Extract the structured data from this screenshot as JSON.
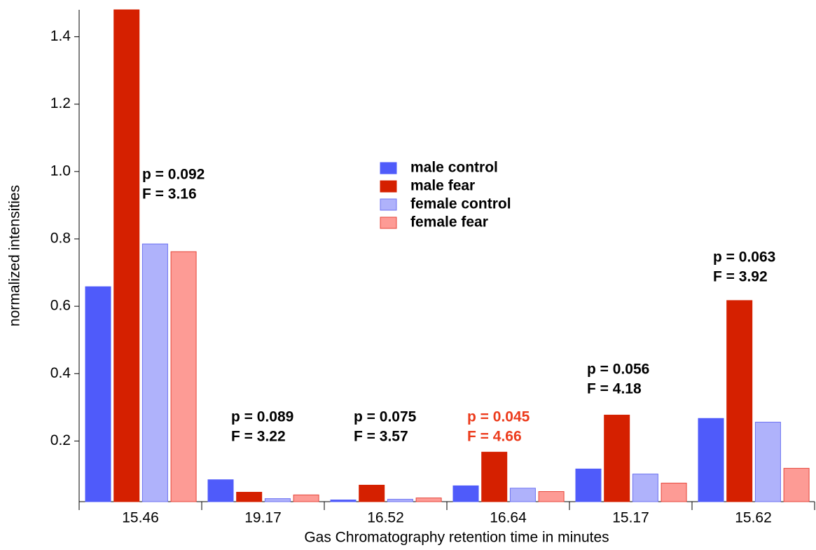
{
  "chart_data": {
    "type": "bar",
    "xlabel": "Gas Chromatography retention time in minutes",
    "ylabel": "normalized intensities",
    "categories": [
      "15.46",
      "19.17",
      "16.52",
      "16.64",
      "15.17",
      "15.62"
    ],
    "series": [
      {
        "name": "male control",
        "color": "#4f5bfa",
        "edgecolor": "#4f5bfa",
        "values": [
          0.658,
          0.085,
          0.025,
          0.067,
          0.117,
          0.267
        ]
      },
      {
        "name": "male fear",
        "color": "#d52000",
        "edgecolor": "#d52000",
        "values": [
          1.48,
          0.048,
          0.069,
          0.167,
          0.277,
          0.617
        ]
      },
      {
        "name": "female control",
        "color": "#afb2fb",
        "edgecolor": "#6c72f2",
        "values": [
          0.785,
          0.029,
          0.027,
          0.06,
          0.102,
          0.256
        ]
      },
      {
        "name": "female fear",
        "color": "#fd9b95",
        "edgecolor": "#e6453a",
        "values": [
          0.762,
          0.04,
          0.031,
          0.05,
          0.075,
          0.119
        ]
      }
    ],
    "annotations": [
      {
        "p": "p = 0.092",
        "F": "F = 3.16",
        "color": "#000000"
      },
      {
        "p": "p = 0.089",
        "F": "F = 3.22",
        "color": "#000000"
      },
      {
        "p": "p = 0.075",
        "F": "F = 3.57",
        "color": "#000000"
      },
      {
        "p": "p = 0.045",
        "F": "F = 4.66",
        "color": "#ec3b1c"
      },
      {
        "p": "p = 0.056",
        "F": "F = 4.18",
        "color": "#000000"
      },
      {
        "p": "p = 0.063",
        "F": "F = 3.92",
        "color": "#000000"
      }
    ],
    "ylim": [
      0.02,
      1.48
    ],
    "yticks": [
      0.2,
      0.4,
      0.6,
      0.8,
      {
        "value": 1,
        "label": "1.0"
      },
      1.2,
      1.4
    ]
  }
}
